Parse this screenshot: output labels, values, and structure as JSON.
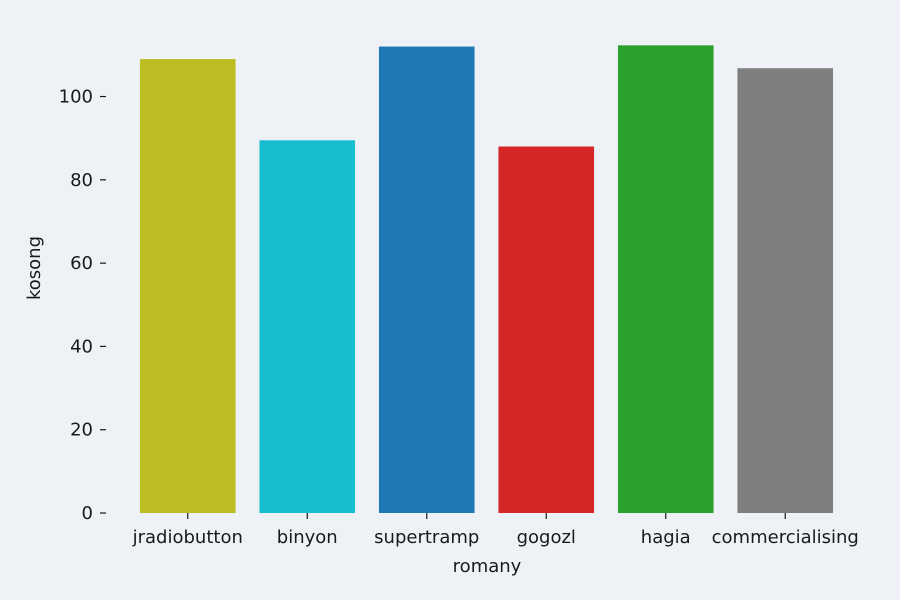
{
  "chart_data": {
    "type": "bar",
    "categories": [
      "jradiobutton",
      "binyon",
      "supertramp",
      "gogozl",
      "hagia",
      "commercialising"
    ],
    "values": [
      109,
      89.5,
      112,
      88,
      112.3,
      106.8
    ],
    "colors": [
      "#bcbd22",
      "#17becf",
      "#1f77b4",
      "#d62728",
      "#2ca02c",
      "#7f7f7f"
    ],
    "xlabel": "romany",
    "ylabel": "kosong",
    "ylim": [
      0,
      117.9
    ],
    "yticks": [
      0,
      20,
      40,
      60,
      80,
      100
    ],
    "grid": false,
    "background": "#eef1f6"
  }
}
